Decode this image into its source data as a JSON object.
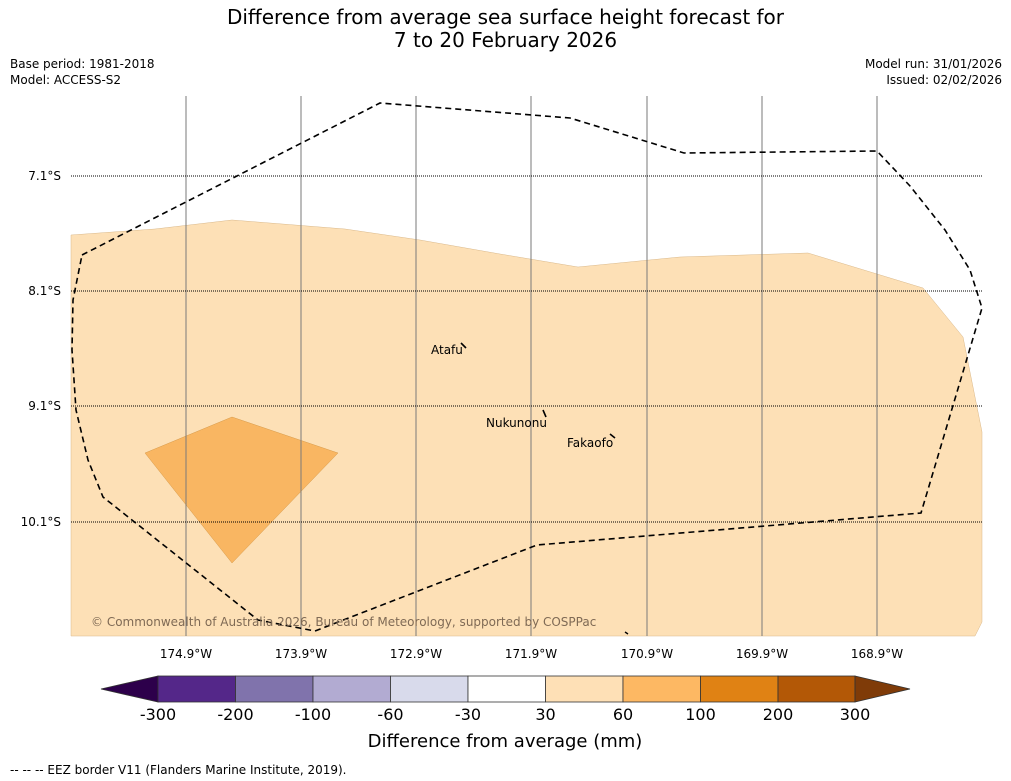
{
  "title": {
    "line1": "Difference from average sea surface height forecast for",
    "line2": "7 to 20 February 2026"
  },
  "meta_left": {
    "base_period": "Base period: 1981-2018",
    "model": "Model: ACCESS-S2"
  },
  "meta_right": {
    "model_run": "Model run: 31/01/2026",
    "issued": "Issued: 02/02/2026"
  },
  "map": {
    "lat_labels": [
      "7.1°S",
      "8.1°S",
      "9.1°S",
      "10.1°S"
    ],
    "lon_labels": [
      "174.9°W",
      "173.9°W",
      "172.9°W",
      "171.9°W",
      "170.9°W",
      "169.9°W",
      "168.9°W"
    ],
    "places": {
      "atafu": "Atafu",
      "nukunonu": "Nukunonu",
      "fakaofo": "Fakaofo"
    },
    "copyright": "© Commonwealth of Australia 2026, Bureau of Meteorology, supported by COSPPac",
    "colors": {
      "band_30_60": "#fde0b6",
      "band_60_100": "#f9b662"
    }
  },
  "colorbar": {
    "title": "Difference from average (mm)",
    "tick_labels": [
      "-300",
      "-200",
      "-100",
      "-60",
      "-30",
      "30",
      "60",
      "100",
      "200",
      "300"
    ],
    "colors": [
      "#2d004b",
      "#542789",
      "#8073ac",
      "#b2abd2",
      "#d8daeb",
      "#ffffff",
      "#fee0b6",
      "#fdb863",
      "#e08214",
      "#b35806",
      "#7f3b08"
    ]
  },
  "legend": {
    "eez": "--  --  -- EEZ border V11 (Flanders Marine Institute, 2019)."
  }
}
